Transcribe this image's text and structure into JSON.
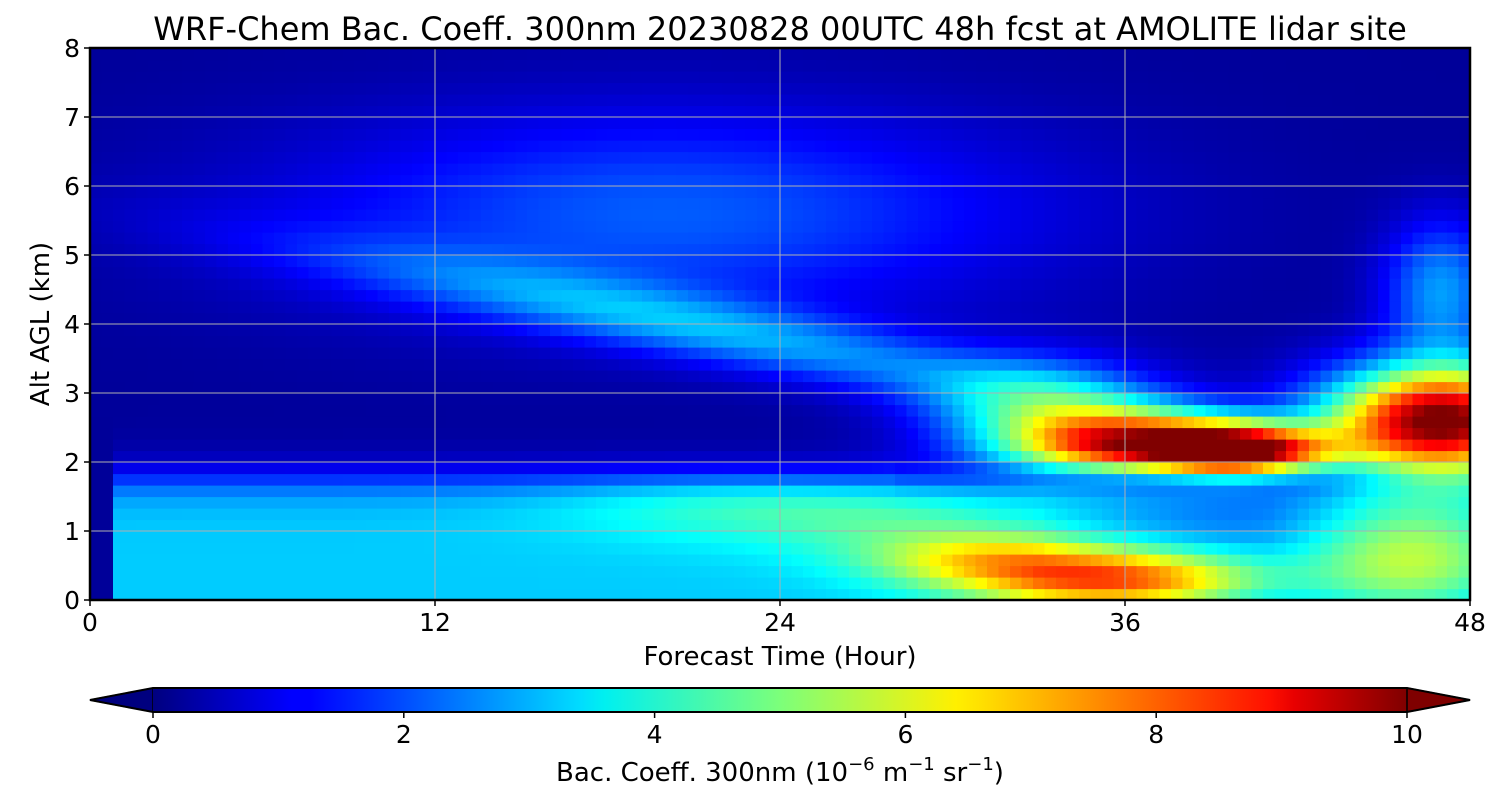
{
  "chart_data": {
    "type": "heatmap",
    "title": "WRF-Chem Bac. Coeff. 300nm  20230828 00UTC 48h fcst at AMOLITE lidar site",
    "xlabel": "Forecast Time (Hour)",
    "ylabel": "Alt AGL (km)",
    "xlim": [
      0,
      48
    ],
    "ylim": [
      0,
      8
    ],
    "x_ticks": [
      "0",
      "12",
      "24",
      "36",
      "48"
    ],
    "y_ticks": [
      "0",
      "1",
      "2",
      "3",
      "4",
      "5",
      "6",
      "7",
      "8"
    ],
    "grid": true,
    "colormap": "jet",
    "colorbar": {
      "label_prefix": "Bac. Coeff. 300nm  (10",
      "label_exp1": "−6",
      "label_mid": " m",
      "label_exp2": "−1",
      "label_mid2": " sr",
      "label_exp3": "−1",
      "label_suffix": ")",
      "vmin": 0,
      "vmax": 10,
      "extend": "both",
      "ticks": [
        "0",
        "2",
        "4",
        "6",
        "8",
        "10"
      ],
      "orientation": "horizontal"
    },
    "features": [
      {
        "desc": "upper background",
        "x_range": [
          0,
          48
        ],
        "y_range": [
          3,
          8
        ],
        "value": 0.3
      },
      {
        "desc": "boundary layer aerosol",
        "x_range": [
          1,
          30
        ],
        "y_range": [
          0,
          1.8
        ],
        "value": 2.8
      },
      {
        "desc": "descending elevated layer",
        "x_start": 8,
        "x_end": 36,
        "y_start": 5.0,
        "y_end": 2.8,
        "value": 2.5
      },
      {
        "desc": "elevated plume core",
        "x_range": [
          32,
          48
        ],
        "y_range": [
          1.7,
          3.3
        ],
        "value": 8.5
      },
      {
        "desc": "surface plume",
        "x_range": [
          28,
          40
        ],
        "y_range": [
          0,
          0.9
        ],
        "value": 6.5
      },
      {
        "desc": "plume max",
        "x_range": [
          42,
          48
        ],
        "y_range": [
          2.0,
          3.2
        ],
        "value": 10.5
      }
    ]
  }
}
